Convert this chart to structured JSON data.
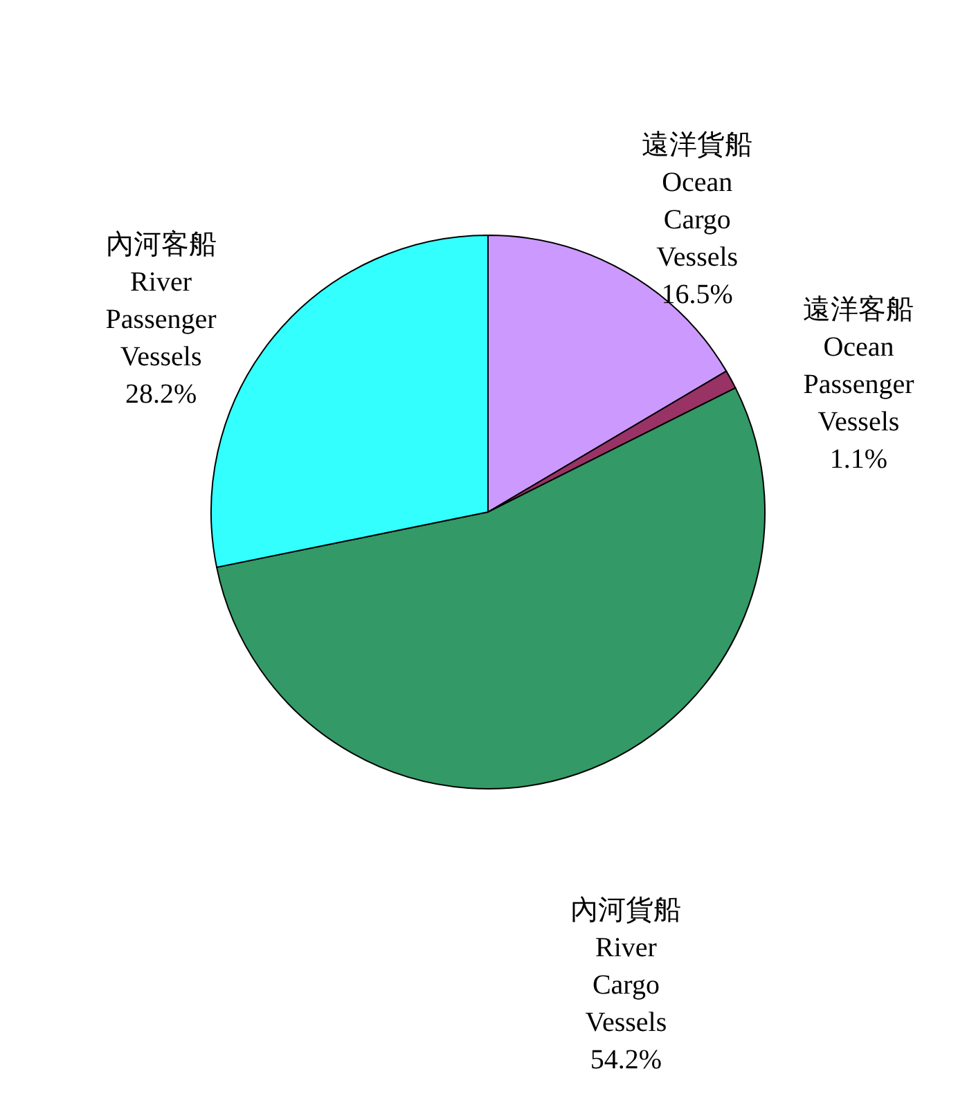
{
  "chart_data": {
    "type": "pie",
    "categories": [
      "遠洋貨船 Ocean Cargo Vessels",
      "遠洋客船 Ocean Passenger Vessels",
      "內河貨船 River Cargo Vessels",
      "內河客船 River Passenger Vessels"
    ],
    "values": [
      16.5,
      1.1,
      54.2,
      28.2
    ],
    "value_labels": [
      "16.5%",
      "1.1%",
      "54.2%",
      "28.2%"
    ],
    "colors": [
      "#cc99ff",
      "#993366",
      "#339966",
      "#33ffff"
    ]
  }
}
